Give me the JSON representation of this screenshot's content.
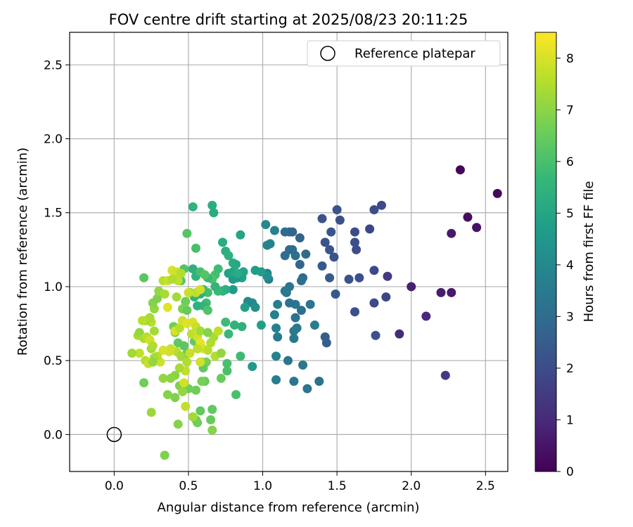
{
  "chart_data": {
    "type": "scatter",
    "title": "FOV centre drift starting at 2025/08/23 20:11:25",
    "xlabel": "Angular distance from reference (arcmin)",
    "ylabel": "Rotation from reference (arcmin)",
    "xlim": [
      -0.3,
      2.65
    ],
    "ylim": [
      -0.25,
      2.72
    ],
    "xticks": [
      0.0,
      0.5,
      1.0,
      1.5,
      2.0,
      2.5
    ],
    "xtick_labels": [
      "0.0",
      "0.5",
      "1.0",
      "1.5",
      "2.0",
      "2.5"
    ],
    "yticks": [
      0.0,
      0.5,
      1.0,
      1.5,
      2.0,
      2.5
    ],
    "ytick_labels": [
      "0.0",
      "0.5",
      "1.0",
      "1.5",
      "2.0",
      "2.5"
    ],
    "grid": true,
    "legend": {
      "position": "top-right",
      "entries": [
        "Reference platepar"
      ]
    },
    "reference_point": {
      "name": "Reference platepar",
      "x": 0.0,
      "y": 0.0
    },
    "colorbar": {
      "label": "Hours from first FF file",
      "colormap": "viridis",
      "range": [
        0,
        8.5
      ],
      "ticks": [
        0,
        1,
        2,
        3,
        4,
        5,
        6,
        7,
        8
      ],
      "tick_labels": [
        "0",
        "1",
        "2",
        "3",
        "4",
        "5",
        "6",
        "7",
        "8"
      ]
    },
    "colormap_stops": [
      "#440154",
      "#482878",
      "#3e4989",
      "#31688e",
      "#26828e",
      "#1f9e89",
      "#35b779",
      "#6ece58",
      "#b5de2b",
      "#fde725"
    ],
    "points": [
      [
        2.33,
        1.79,
        0.1
      ],
      [
        2.58,
        1.63,
        0.2
      ],
      [
        2.38,
        1.47,
        0.3
      ],
      [
        2.44,
        1.4,
        0.4
      ],
      [
        2.27,
        1.36,
        0.6
      ],
      [
        2.0,
        1.0,
        0.8
      ],
      [
        2.2,
        0.96,
        0.7
      ],
      [
        2.27,
        0.96,
        0.6
      ],
      [
        2.1,
        0.8,
        1.0
      ],
      [
        1.92,
        0.68,
        1.1
      ],
      [
        2.23,
        0.4,
        1.5
      ],
      [
        1.84,
        1.07,
        1.5
      ],
      [
        1.8,
        1.55,
        1.9
      ],
      [
        1.75,
        1.52,
        2.0
      ],
      [
        1.72,
        1.39,
        1.8
      ],
      [
        1.62,
        1.37,
        2.0
      ],
      [
        1.62,
        1.3,
        2.1
      ],
      [
        1.63,
        1.25,
        2.0
      ],
      [
        1.65,
        1.06,
        2.1
      ],
      [
        1.58,
        1.05,
        2.2
      ],
      [
        1.75,
        1.11,
        1.9
      ],
      [
        1.75,
        0.89,
        1.9
      ],
      [
        1.83,
        0.93,
        1.8
      ],
      [
        1.76,
        0.67,
        2.2
      ],
      [
        1.62,
        0.83,
        2.1
      ],
      [
        1.5,
        1.52,
        2.2
      ],
      [
        1.52,
        1.45,
        2.1
      ],
      [
        1.4,
        1.46,
        2.2
      ],
      [
        1.46,
        1.37,
        2.3
      ],
      [
        1.42,
        1.3,
        2.2
      ],
      [
        1.45,
        1.25,
        2.3
      ],
      [
        1.48,
        1.2,
        2.2
      ],
      [
        1.4,
        1.14,
        2.4
      ],
      [
        1.45,
        1.06,
        2.4
      ],
      [
        1.49,
        0.95,
        2.4
      ],
      [
        1.42,
        0.66,
        2.5
      ],
      [
        1.43,
        0.62,
        2.5
      ],
      [
        1.25,
        1.33,
        2.7
      ],
      [
        1.15,
        1.37,
        2.9
      ],
      [
        1.18,
        1.37,
        3.0
      ],
      [
        1.2,
        1.37,
        2.8
      ],
      [
        1.18,
        1.25,
        2.9
      ],
      [
        1.2,
        1.25,
        3.0
      ],
      [
        1.15,
        1.21,
        3.0
      ],
      [
        1.25,
        1.15,
        2.8
      ],
      [
        1.29,
        1.22,
        3.0
      ],
      [
        1.27,
        1.06,
        2.9
      ],
      [
        1.26,
        1.04,
        3.1
      ],
      [
        1.22,
        1.21,
        3.1
      ],
      [
        1.22,
        0.88,
        3.3
      ],
      [
        1.18,
        0.89,
        3.2
      ],
      [
        1.26,
        0.84,
        3.1
      ],
      [
        1.22,
        0.79,
        3.2
      ],
      [
        1.16,
        0.96,
        3.3
      ],
      [
        1.18,
        1.0,
        3.3
      ],
      [
        1.15,
        0.97,
        3.4
      ],
      [
        1.32,
        0.88,
        3.3
      ],
      [
        1.23,
        0.72,
        3.4
      ],
      [
        1.21,
        0.7,
        3.5
      ],
      [
        1.21,
        0.65,
        3.4
      ],
      [
        1.27,
        0.47,
        3.4
      ],
      [
        1.17,
        0.5,
        3.3
      ],
      [
        1.21,
        0.36,
        3.3
      ],
      [
        1.3,
        0.31,
        3.3
      ],
      [
        1.38,
        0.36,
        3.2
      ],
      [
        1.35,
        0.74,
        3.6
      ],
      [
        1.1,
        0.88,
        3.6
      ],
      [
        1.08,
        0.81,
        3.7
      ],
      [
        1.09,
        0.72,
        3.7
      ],
      [
        1.1,
        0.66,
        3.5
      ],
      [
        1.09,
        0.53,
        3.7
      ],
      [
        1.09,
        0.37,
        3.6
      ],
      [
        1.03,
        1.09,
        3.8
      ],
      [
        1.04,
        1.05,
        3.6
      ],
      [
        1.03,
        1.28,
        3.9
      ],
      [
        1.05,
        1.29,
        3.8
      ],
      [
        1.02,
        1.42,
        4.0
      ],
      [
        1.08,
        1.38,
        3.8
      ],
      [
        1.03,
        1.07,
        4.2
      ],
      [
        0.9,
        0.9,
        4.1
      ],
      [
        0.93,
        0.89,
        4.0
      ],
      [
        0.95,
        0.86,
        4.2
      ],
      [
        0.93,
        0.46,
        4.6
      ],
      [
        0.88,
        0.86,
        4.8
      ],
      [
        0.95,
        1.11,
        4.7
      ],
      [
        0.99,
        1.1,
        4.7
      ],
      [
        0.99,
        0.74,
        4.8
      ],
      [
        0.86,
        1.06,
        4.9
      ],
      [
        0.87,
        1.1,
        4.9
      ],
      [
        0.83,
        1.06,
        4.7
      ],
      [
        0.8,
        1.05,
        4.6
      ],
      [
        0.77,
        1.09,
        4.8
      ],
      [
        0.8,
        1.1,
        5.0
      ],
      [
        0.8,
        0.98,
        4.6
      ],
      [
        0.85,
        1.35,
        5.0
      ],
      [
        0.73,
        1.3,
        5.2
      ],
      [
        0.75,
        1.24,
        5.3
      ],
      [
        0.77,
        1.21,
        5.4
      ],
      [
        0.8,
        1.16,
        5.2
      ],
      [
        0.82,
        1.15,
        5.1
      ],
      [
        0.83,
        1.09,
        5.2
      ],
      [
        0.66,
        1.55,
        5.3
      ],
      [
        0.67,
        1.5,
        5.2
      ],
      [
        0.53,
        1.54,
        5.5
      ],
      [
        0.75,
        0.98,
        5.3
      ],
      [
        0.73,
        0.97,
        5.4
      ],
      [
        0.7,
        0.97,
        5.7
      ],
      [
        0.86,
        0.73,
        5.4
      ],
      [
        0.81,
        0.74,
        5.5
      ],
      [
        0.77,
        0.68,
        5.7
      ],
      [
        0.75,
        0.76,
        5.8
      ],
      [
        0.85,
        0.53,
        5.8
      ],
      [
        0.76,
        0.48,
        6.0
      ],
      [
        0.76,
        0.43,
        6.0
      ],
      [
        0.82,
        0.27,
        6.0
      ],
      [
        0.7,
        1.12,
        5.8
      ],
      [
        0.68,
        1.08,
        5.9
      ],
      [
        0.66,
        1.05,
        6.1
      ],
      [
        0.63,
        1.06,
        5.7
      ],
      [
        0.68,
        1.0,
        5.6
      ],
      [
        0.6,
        0.98,
        5.7
      ],
      [
        0.63,
        0.96,
        5.9
      ],
      [
        0.62,
        0.89,
        5.8
      ],
      [
        0.6,
        0.87,
        5.6
      ],
      [
        0.63,
        0.84,
        6.1
      ],
      [
        0.58,
        0.95,
        5.4
      ],
      [
        0.56,
        0.87,
        5.4
      ],
      [
        0.54,
        0.93,
        5.5
      ],
      [
        0.53,
        1.12,
        5.4
      ],
      [
        0.55,
        1.07,
        5.5
      ],
      [
        0.58,
        1.1,
        6.0
      ],
      [
        0.61,
        1.08,
        6.2
      ],
      [
        0.55,
        1.26,
        6.0
      ],
      [
        0.49,
        1.36,
        6.2
      ],
      [
        0.47,
        1.12,
        6.1
      ],
      [
        0.42,
        1.08,
        6.3
      ],
      [
        0.45,
        1.04,
        6.2
      ],
      [
        0.51,
        0.96,
        6.4
      ],
      [
        0.48,
        0.9,
        6.6
      ],
      [
        0.46,
        0.85,
        6.8
      ],
      [
        0.49,
        0.84,
        6.5
      ],
      [
        0.46,
        0.77,
        6.7
      ],
      [
        0.43,
        0.72,
        6.9
      ],
      [
        0.4,
        0.73,
        6.6
      ],
      [
        0.41,
        0.69,
        6.6
      ],
      [
        0.43,
        0.62,
        6.4
      ],
      [
        0.47,
        0.6,
        6.3
      ],
      [
        0.49,
        0.55,
        6.4
      ],
      [
        0.54,
        0.63,
        6.4
      ],
      [
        0.57,
        0.6,
        6.5
      ],
      [
        0.59,
        0.49,
        6.6
      ],
      [
        0.62,
        0.49,
        6.7
      ],
      [
        0.6,
        0.45,
        6.4
      ],
      [
        0.61,
        0.36,
        6.5
      ],
      [
        0.59,
        0.36,
        6.7
      ],
      [
        0.55,
        0.3,
        6.6
      ],
      [
        0.5,
        0.31,
        6.6
      ],
      [
        0.58,
        0.16,
        6.4
      ],
      [
        0.55,
        0.1,
        6.7
      ],
      [
        0.56,
        0.08,
        6.6
      ],
      [
        0.66,
        0.17,
        6.4
      ],
      [
        0.65,
        0.1,
        6.5
      ],
      [
        0.66,
        0.03,
        6.9
      ],
      [
        0.43,
        0.07,
        6.9
      ],
      [
        0.34,
        -0.14,
        6.8
      ],
      [
        0.41,
        0.25,
        6.8
      ],
      [
        0.36,
        0.27,
        6.9
      ],
      [
        0.38,
        0.38,
        7.0
      ],
      [
        0.33,
        0.38,
        7.1
      ],
      [
        0.41,
        0.4,
        7.0
      ],
      [
        0.44,
        0.33,
        6.8
      ],
      [
        0.46,
        0.29,
        7.1
      ],
      [
        0.48,
        0.19,
        7.7
      ],
      [
        0.53,
        0.12,
        7.3
      ],
      [
        0.47,
        0.35,
        7.9
      ],
      [
        0.48,
        0.43,
        7.7
      ],
      [
        0.44,
        0.45,
        7.4
      ],
      [
        0.49,
        0.49,
        7.5
      ],
      [
        0.51,
        0.55,
        7.8
      ],
      [
        0.42,
        0.56,
        7.6
      ],
      [
        0.38,
        0.58,
        7.8
      ],
      [
        0.37,
        0.56,
        7.9
      ],
      [
        0.33,
        0.57,
        8.0
      ],
      [
        0.31,
        0.49,
        7.9
      ],
      [
        0.29,
        0.53,
        7.6
      ],
      [
        0.27,
        0.52,
        7.4
      ],
      [
        0.25,
        0.58,
        7.3
      ],
      [
        0.21,
        0.5,
        7.6
      ],
      [
        0.23,
        0.48,
        7.8
      ],
      [
        0.17,
        0.55,
        7.7
      ],
      [
        0.12,
        0.55,
        7.3
      ],
      [
        0.16,
        0.67,
        7.4
      ],
      [
        0.17,
        0.69,
        7.1
      ],
      [
        0.2,
        0.65,
        7.4
      ],
      [
        0.22,
        0.66,
        7.6
      ],
      [
        0.24,
        0.64,
        7.9
      ],
      [
        0.26,
        0.6,
        7.5
      ],
      [
        0.27,
        0.7,
        7.3
      ],
      [
        0.25,
        0.76,
        7.6
      ],
      [
        0.21,
        0.77,
        7.2
      ],
      [
        0.24,
        0.79,
        7.4
      ],
      [
        0.27,
        0.85,
        7.1
      ],
      [
        0.26,
        0.89,
        6.9
      ],
      [
        0.29,
        0.92,
        6.8
      ],
      [
        0.3,
        0.97,
        7.1
      ],
      [
        0.34,
        0.95,
        7.4
      ],
      [
        0.33,
        1.04,
        7.6
      ],
      [
        0.36,
        1.04,
        7.8
      ],
      [
        0.39,
        1.11,
        8.0
      ],
      [
        0.42,
        1.1,
        7.9
      ],
      [
        0.45,
        1.09,
        7.5
      ],
      [
        0.43,
        1.04,
        7.7
      ],
      [
        0.36,
        0.86,
        8.1
      ],
      [
        0.41,
        0.7,
        8.0
      ],
      [
        0.44,
        0.72,
        7.6
      ],
      [
        0.46,
        0.77,
        7.9
      ],
      [
        0.49,
        0.75,
        8.1
      ],
      [
        0.53,
        0.76,
        8.0
      ],
      [
        0.55,
        0.73,
        7.8
      ],
      [
        0.52,
        0.68,
        7.7
      ],
      [
        0.56,
        0.66,
        7.9
      ],
      [
        0.58,
        0.62,
        8.2
      ],
      [
        0.6,
        0.58,
        8.0
      ],
      [
        0.63,
        0.57,
        7.6
      ],
      [
        0.65,
        0.62,
        7.5
      ],
      [
        0.67,
        0.66,
        7.4
      ],
      [
        0.7,
        0.7,
        7.7
      ],
      [
        0.68,
        0.53,
        7.5
      ],
      [
        0.56,
        0.58,
        7.7
      ],
      [
        0.58,
        0.49,
        7.9
      ],
      [
        0.55,
        0.96,
        7.7
      ],
      [
        0.58,
        0.98,
        7.9
      ],
      [
        0.5,
        0.96,
        7.8
      ],
      [
        0.39,
        1.05,
        7.5
      ],
      [
        0.45,
        0.53,
        7.3
      ],
      [
        0.2,
        1.06,
        6.3
      ],
      [
        0.2,
        0.35,
        6.6
      ],
      [
        0.25,
        0.15,
        7.2
      ],
      [
        0.26,
        0.49,
        7.1
      ],
      [
        0.19,
        0.77,
        7.6
      ],
      [
        0.42,
        0.93,
        7.3
      ],
      [
        0.58,
        0.7,
        7.3
      ],
      [
        0.72,
        0.55,
        7.1
      ],
      [
        0.63,
        0.69,
        6.9
      ],
      [
        0.72,
        0.38,
        6.5
      ]
    ]
  }
}
